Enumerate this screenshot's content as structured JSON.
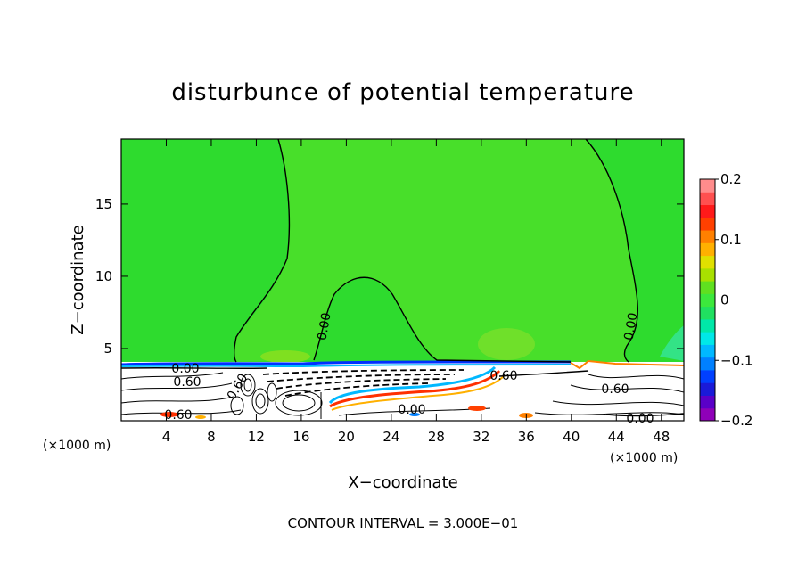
{
  "chart_data": {
    "type": "heatmap",
    "title": "disturbunce of potential temperature",
    "xlabel": "X−coordinate",
    "ylabel": "Z−coordinate",
    "x_unit": "(×1000 m)",
    "x_ticks": [
      4,
      8,
      12,
      16,
      20,
      24,
      28,
      32,
      36,
      40,
      44,
      48
    ],
    "y_ticks": [
      5,
      10,
      15
    ],
    "xlim": [
      0,
      50
    ],
    "ylim": [
      0,
      19.5
    ],
    "colorbar": {
      "ticks": [
        0.2,
        0.1,
        0,
        -0.1,
        -0.2
      ],
      "tick_labels": [
        "0.2",
        "0.1",
        "0",
        "−0.1",
        "−0.2"
      ],
      "range": [
        -0.2,
        0.2
      ],
      "colors": [
        "#8f00b8",
        "#5a00c8",
        "#1a1ad8",
        "#0040ff",
        "#0080ff",
        "#00b8ff",
        "#00e8e8",
        "#00e8a8",
        "#20e060",
        "#3ce83c",
        "#60e020",
        "#a8e000",
        "#e0e000",
        "#ffb000",
        "#ff8000",
        "#ff4000",
        "#ff1a1a",
        "#ff5050",
        "#ff8c8c"
      ]
    },
    "contour_labels": [
      "0.00",
      "0.00",
      "0.00",
      "0.60",
      "0.60",
      "0.60",
      "0.60",
      "0.00",
      "0.60",
      "0.00"
    ],
    "footer": "CONTOUR INTERVAL = 3.000E−01"
  },
  "colors": {
    "field_green": "#2edb2e",
    "light_green": "#5fdf3a",
    "cyan_green": "#33e386",
    "frame": "#000000"
  }
}
